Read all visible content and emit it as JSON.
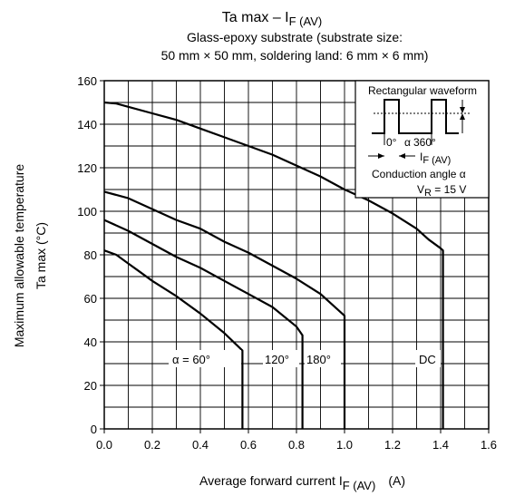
{
  "chart_data": {
    "type": "line",
    "title": "Ta max – I",
    "title_sub": "F (AV)",
    "subtitle_line1": "Glass-epoxy substrate (substrate size:",
    "subtitle_line2": "50 mm × 50 mm, soldering land: 6 mm × 6 mm)",
    "ylabel_line1": "Maximum allowable temperature",
    "ylabel_line2": "Ta max   (°C)",
    "xlabel_main": "Average forward current   I",
    "xlabel_sub": "F (AV)",
    "xlabel_unit": "(A)",
    "xlim": [
      0,
      1.6
    ],
    "ylim": [
      0,
      160
    ],
    "x_ticks": [
      0,
      0.2,
      0.4,
      0.6,
      0.8,
      1.0,
      1.2,
      1.4,
      1.6
    ],
    "x_tick_labels": [
      "0.0",
      "0.2",
      "0.4",
      "0.6",
      "0.8",
      "1.0",
      "1.2",
      "1.4",
      "1.6"
    ],
    "y_ticks": [
      0,
      20,
      40,
      60,
      80,
      100,
      120,
      140,
      160
    ],
    "y_tick_labels": [
      "0",
      "20",
      "40",
      "60",
      "80",
      "100",
      "120",
      "140",
      "160"
    ],
    "grid": true,
    "series": [
      {
        "name": "α = 60°",
        "x": [
          0,
          0.05,
          0.1,
          0.15,
          0.2,
          0.3,
          0.4,
          0.5,
          0.575,
          0.575
        ],
        "y": [
          82,
          80,
          76,
          72,
          68,
          61,
          53,
          44,
          36,
          0
        ]
      },
      {
        "name": "120°",
        "x": [
          0,
          0.1,
          0.2,
          0.3,
          0.4,
          0.5,
          0.6,
          0.7,
          0.8,
          0.825,
          0.825
        ],
        "y": [
          96,
          91,
          85,
          79,
          74,
          68,
          62,
          56,
          47,
          43,
          0
        ]
      },
      {
        "name": "180°",
        "x": [
          0,
          0.1,
          0.2,
          0.3,
          0.4,
          0.5,
          0.6,
          0.7,
          0.8,
          0.9,
          1.0,
          1.0
        ],
        "y": [
          109,
          106,
          101,
          96,
          92,
          86,
          81,
          75,
          69,
          62,
          52,
          0
        ]
      },
      {
        "name": "DC",
        "x": [
          0,
          0.05,
          0.1,
          0.2,
          0.3,
          0.4,
          0.5,
          0.6,
          0.7,
          0.8,
          0.9,
          1.0,
          1.1,
          1.2,
          1.3,
          1.35,
          1.4,
          1.41,
          1.41
        ],
        "y": [
          150,
          149.5,
          148,
          145,
          142,
          138,
          134,
          130,
          126,
          121,
          116,
          110,
          105,
          99,
          92,
          87,
          83,
          82,
          0
        ]
      }
    ],
    "curve_labels": [
      "α = 60°",
      "120°",
      "180°",
      "DC"
    ],
    "inset": {
      "title": "Rectangular waveform",
      "label_0": "0°",
      "label_alpha": "α",
      "label_360": "360°",
      "label_if_main": "I",
      "label_if_sub": "F (AV)",
      "label_conduction": "Conduction angle α",
      "label_vr_main": "V",
      "label_vr_sub": "R",
      "label_vr_value": " = 15 V"
    }
  }
}
